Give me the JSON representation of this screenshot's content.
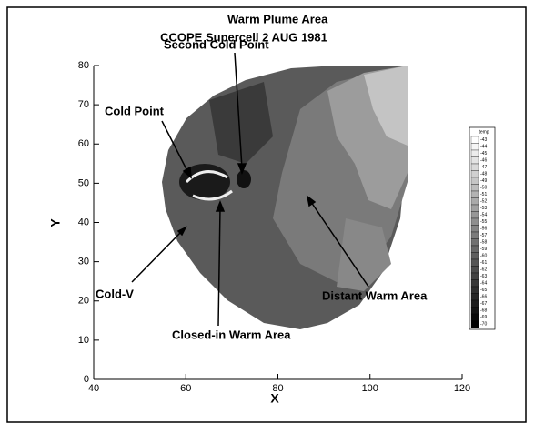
{
  "chart_data": {
    "type": "contour",
    "title": "CCOPE Supercell 2 AUG 1981",
    "xlabel": "X",
    "ylabel": "Y",
    "xlim": [
      40,
      120
    ],
    "xticks": [
      40,
      60,
      80,
      100,
      120
    ],
    "ylim": [
      0,
      80
    ],
    "yticks": [
      0,
      10,
      20,
      30,
      40,
      50,
      60,
      70,
      80
    ],
    "colorbar": {
      "title": "temp",
      "ticks": [
        -43,
        -44,
        -45,
        -46,
        -47,
        -48,
        -49,
        -50,
        -51,
        -52,
        -53,
        -54,
        -55,
        -56,
        -57,
        -58,
        -59,
        -60,
        -61,
        -62,
        -63,
        -64,
        -65,
        -66,
        -67,
        -68,
        -69,
        -70
      ]
    },
    "annotations": [
      "Second Cold Point",
      "Warm Plume Area",
      "Cold Point",
      "Cold-V",
      "Closed-in Warm Area",
      "Distant Warm Area"
    ]
  }
}
